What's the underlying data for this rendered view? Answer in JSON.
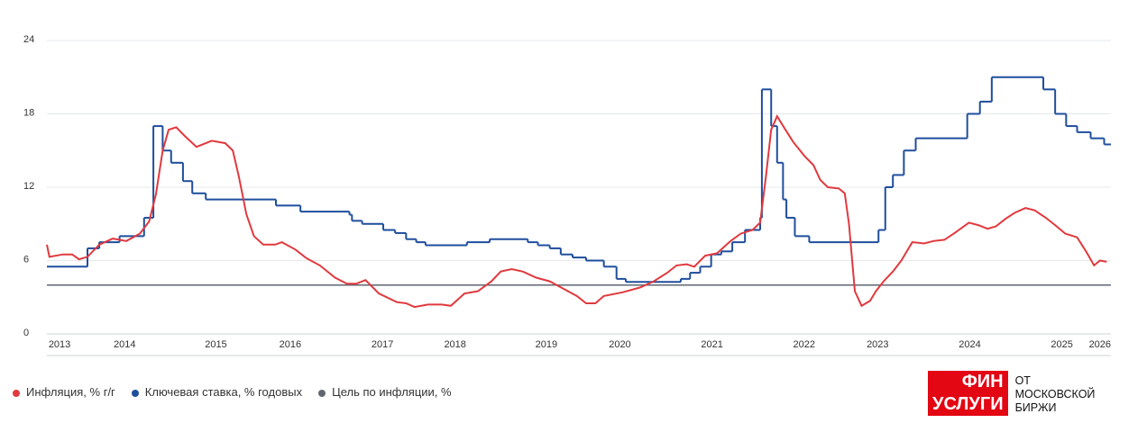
{
  "chart_data": {
    "type": "line",
    "xlim": [
      2013.7,
      2026.29
    ],
    "xticks": [
      {
        "value": 2013.85,
        "label": "2013"
      },
      {
        "value": 2014.62,
        "label": "2014"
      },
      {
        "value": 2015.7,
        "label": "2015"
      },
      {
        "value": 2016.58,
        "label": "2016"
      },
      {
        "value": 2017.67,
        "label": "2017"
      },
      {
        "value": 2018.53,
        "label": "2018"
      },
      {
        "value": 2019.61,
        "label": "2019"
      },
      {
        "value": 2020.48,
        "label": "2020"
      },
      {
        "value": 2021.57,
        "label": "2021"
      },
      {
        "value": 2022.66,
        "label": "2022"
      },
      {
        "value": 2023.53,
        "label": "2023"
      },
      {
        "value": 2024.62,
        "label": "2024"
      },
      {
        "value": 2025.71,
        "label": "2025"
      },
      {
        "value": 2026.16,
        "label": "2026"
      }
    ],
    "ylim": [
      0,
      24
    ],
    "yticks": [
      0,
      6,
      12,
      18,
      24
    ],
    "grid": true,
    "series": [
      {
        "name": "Инфляция, % г/г",
        "color": "#e0393e",
        "style": "line",
        "x": [
          2013.7,
          2013.73,
          2013.89,
          2014.0,
          2014.08,
          2014.18,
          2014.32,
          2014.48,
          2014.64,
          2014.8,
          2014.91,
          2014.99,
          2015.07,
          2015.14,
          2015.23,
          2015.33,
          2015.47,
          2015.65,
          2015.81,
          2015.9,
          2015.97,
          2016.06,
          2016.15,
          2016.26,
          2016.4,
          2016.48,
          2016.64,
          2016.77,
          2016.93,
          2017.11,
          2017.25,
          2017.36,
          2017.47,
          2017.63,
          2017.84,
          2017.95,
          2018.05,
          2018.21,
          2018.37,
          2018.48,
          2018.64,
          2018.8,
          2018.96,
          2019.07,
          2019.2,
          2019.33,
          2019.49,
          2019.65,
          2019.81,
          2019.97,
          2020.08,
          2020.19,
          2020.29,
          2020.51,
          2020.72,
          2020.88,
          2021.04,
          2021.15,
          2021.27,
          2021.36,
          2021.49,
          2021.63,
          2021.79,
          2021.91,
          2022.05,
          2022.14,
          2022.21,
          2022.27,
          2022.34,
          2022.43,
          2022.53,
          2022.67,
          2022.77,
          2022.85,
          2022.94,
          2023.07,
          2023.14,
          2023.19,
          2023.26,
          2023.34,
          2023.44,
          2023.51,
          2023.6,
          2023.71,
          2023.81,
          2023.94,
          2024.08,
          2024.19,
          2024.32,
          2024.45,
          2024.61,
          2024.72,
          2024.83,
          2024.93,
          2025.04,
          2025.15,
          2025.28,
          2025.39,
          2025.52,
          2025.63,
          2025.75,
          2025.89,
          2026.0,
          2026.09,
          2026.16,
          2026.24
        ],
        "values": [
          7.3,
          6.3,
          6.5,
          6.5,
          6.1,
          6.3,
          7.3,
          7.8,
          7.6,
          8.2,
          9.2,
          11.4,
          15,
          16.7,
          16.9,
          16.2,
          15.3,
          15.8,
          15.6,
          15,
          12.9,
          9.8,
          8,
          7.3,
          7.3,
          7.5,
          6.9,
          6.2,
          5.6,
          4.6,
          4.1,
          4.1,
          4.4,
          3.3,
          2.6,
          2.5,
          2.2,
          2.4,
          2.4,
          2.3,
          3.3,
          3.5,
          4.3,
          5.1,
          5.3,
          5.1,
          4.6,
          4.3,
          3.7,
          3.1,
          2.5,
          2.5,
          3.1,
          3.4,
          3.8,
          4.3,
          5,
          5.6,
          5.7,
          5.5,
          6.4,
          6.6,
          7.6,
          8.2,
          8.5,
          9.1,
          13,
          16.7,
          17.8,
          16.8,
          15.7,
          14.5,
          13.8,
          12.6,
          12,
          11.9,
          11.5,
          9,
          3.5,
          2.3,
          2.7,
          3.5,
          4.3,
          5.1,
          6,
          7.5,
          7.4,
          7.6,
          7.7,
          8.3,
          9.1,
          8.9,
          8.6,
          8.8,
          9.4,
          9.9,
          10.3,
          10.1,
          9.5,
          8.9,
          8.2,
          7.9,
          6.7,
          5.6,
          6,
          5.9
        ]
      },
      {
        "name": "Ключевая ставка, % годовых",
        "color": "#1f4e9c",
        "style": "step",
        "x": [
          2013.7,
          2014.18,
          2014.32,
          2014.56,
          2014.85,
          2014.96,
          2015.07,
          2015.17,
          2015.31,
          2015.42,
          2015.58,
          2016.41,
          2016.7,
          2017.28,
          2017.31,
          2017.43,
          2017.68,
          2017.82,
          2017.95,
          2018.07,
          2018.18,
          2018.67,
          2018.94,
          2019.39,
          2019.51,
          2019.65,
          2019.78,
          2019.92,
          2020.08,
          2020.29,
          2020.44,
          2020.55,
          2021.2,
          2021.31,
          2021.43,
          2021.56,
          2021.68,
          2021.81,
          2021.96,
          2022.14,
          2022.16,
          2022.27,
          2022.34,
          2022.41,
          2022.45,
          2022.55,
          2022.72,
          2023.54,
          2023.62,
          2023.71,
          2023.84,
          2023.98,
          2024.59,
          2024.74,
          2024.88,
          2025.49,
          2025.63,
          2025.76,
          2025.89,
          2026.05,
          2026.21
        ],
        "values": [
          5.5,
          7,
          7.5,
          8,
          9.5,
          17,
          15,
          14,
          12.5,
          11.5,
          11,
          10.5,
          10,
          9.75,
          9.25,
          9,
          8.5,
          8.25,
          7.75,
          7.5,
          7.25,
          7.5,
          7.75,
          7.5,
          7.25,
          7,
          6.5,
          6.25,
          6,
          5.5,
          4.5,
          4.25,
          4.5,
          5,
          5.5,
          6.5,
          6.75,
          7.5,
          8.5,
          9.5,
          20,
          17,
          14,
          11,
          9.5,
          8,
          7.5,
          8.5,
          12,
          13,
          15,
          16,
          18,
          19,
          21,
          20,
          18,
          17,
          16.5,
          16,
          15.5
        ]
      },
      {
        "name": "Цель по инфляции, %",
        "color": "#5f6670",
        "style": "line",
        "x": [
          2013.7,
          2026.29
        ],
        "values": [
          4,
          4
        ]
      }
    ],
    "logo": {
      "top": "ФИН",
      "bottom": "УСЛУГИ",
      "caption": [
        "ОТ",
        "МОСКОВСКОЙ",
        "БИРЖИ"
      ]
    }
  }
}
